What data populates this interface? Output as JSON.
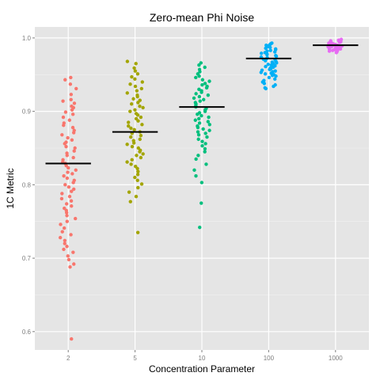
{
  "chart_data": {
    "type": "scatter",
    "title": "Zero-mean Phi Noise",
    "xlabel": "Concentration Parameter",
    "ylabel": "1C Metric",
    "categories": [
      "2",
      "5",
      "10",
      "100",
      "1000"
    ],
    "ylim": [
      0.575,
      1.015
    ],
    "yticks": [
      0.6,
      0.7,
      0.8,
      0.9,
      1.0
    ],
    "ytick_labels": [
      "0.6",
      "0.7",
      "0.8",
      "0.9",
      "1.0"
    ],
    "grid": true,
    "colors": [
      "#F8766D",
      "#A3A500",
      "#00BF7D",
      "#00B0F6",
      "#E76BF3"
    ],
    "mean_line_color": "#000000",
    "panel_background": "#E5E5E5",
    "series": [
      {
        "category": "2",
        "mean": 0.829,
        "values": [
          0.946,
          0.943,
          0.937,
          0.931,
          0.923,
          0.916,
          0.914,
          0.911,
          0.907,
          0.905,
          0.902,
          0.899,
          0.896,
          0.892,
          0.888,
          0.884,
          0.881,
          0.878,
          0.874,
          0.871,
          0.868,
          0.864,
          0.861,
          0.858,
          0.856,
          0.852,
          0.85,
          0.846,
          0.843,
          0.84,
          0.837,
          0.834,
          0.831,
          0.829,
          0.826,
          0.823,
          0.82,
          0.817,
          0.815,
          0.812,
          0.809,
          0.806,
          0.803,
          0.8,
          0.797,
          0.794,
          0.791,
          0.788,
          0.784,
          0.781,
          0.778,
          0.774,
          0.771,
          0.768,
          0.765,
          0.762,
          0.758,
          0.754,
          0.75,
          0.746,
          0.741,
          0.736,
          0.732,
          0.728,
          0.724,
          0.72,
          0.716,
          0.712,
          0.708,
          0.703,
          0.698,
          0.692,
          0.688,
          0.59
        ]
      },
      {
        "category": "5",
        "mean": 0.872,
        "values": [
          0.968,
          0.965,
          0.959,
          0.955,
          0.951,
          0.947,
          0.944,
          0.94,
          0.937,
          0.934,
          0.931,
          0.928,
          0.925,
          0.922,
          0.92,
          0.917,
          0.915,
          0.912,
          0.91,
          0.907,
          0.905,
          0.902,
          0.9,
          0.897,
          0.895,
          0.892,
          0.89,
          0.887,
          0.885,
          0.882,
          0.88,
          0.877,
          0.875,
          0.872,
          0.87,
          0.867,
          0.865,
          0.862,
          0.86,
          0.857,
          0.855,
          0.852,
          0.85,
          0.847,
          0.845,
          0.842,
          0.84,
          0.837,
          0.834,
          0.831,
          0.828,
          0.825,
          0.822,
          0.818,
          0.814,
          0.81,
          0.806,
          0.801,
          0.796,
          0.79,
          0.784,
          0.777,
          0.735
        ]
      },
      {
        "category": "10",
        "mean": 0.906,
        "values": [
          0.966,
          0.963,
          0.96,
          0.957,
          0.954,
          0.951,
          0.948,
          0.946,
          0.943,
          0.941,
          0.938,
          0.936,
          0.934,
          0.932,
          0.93,
          0.928,
          0.926,
          0.924,
          0.922,
          0.92,
          0.918,
          0.916,
          0.914,
          0.912,
          0.91,
          0.908,
          0.906,
          0.904,
          0.902,
          0.9,
          0.898,
          0.896,
          0.894,
          0.892,
          0.89,
          0.888,
          0.886,
          0.884,
          0.882,
          0.88,
          0.878,
          0.876,
          0.874,
          0.872,
          0.87,
          0.868,
          0.865,
          0.862,
          0.859,
          0.856,
          0.853,
          0.849,
          0.845,
          0.84,
          0.835,
          0.828,
          0.82,
          0.812,
          0.803,
          0.775,
          0.742
        ]
      },
      {
        "category": "100",
        "mean": 0.972,
        "values": [
          0.993,
          0.992,
          0.991,
          0.99,
          0.989,
          0.988,
          0.987,
          0.986,
          0.985,
          0.984,
          0.983,
          0.982,
          0.981,
          0.98,
          0.979,
          0.978,
          0.977,
          0.976,
          0.975,
          0.974,
          0.973,
          0.972,
          0.971,
          0.97,
          0.969,
          0.968,
          0.967,
          0.966,
          0.965,
          0.964,
          0.963,
          0.962,
          0.961,
          0.96,
          0.959,
          0.958,
          0.957,
          0.956,
          0.955,
          0.954,
          0.953,
          0.952,
          0.951,
          0.95,
          0.949,
          0.948,
          0.946,
          0.944,
          0.942,
          0.94,
          0.938,
          0.936,
          0.934,
          0.932,
          0.931
        ]
      },
      {
        "category": "1000",
        "mean": 0.99,
        "values": [
          0.998,
          0.997,
          0.997,
          0.996,
          0.996,
          0.995,
          0.995,
          0.994,
          0.994,
          0.993,
          0.993,
          0.992,
          0.992,
          0.991,
          0.991,
          0.99,
          0.99,
          0.99,
          0.989,
          0.989,
          0.988,
          0.988,
          0.987,
          0.987,
          0.986,
          0.986,
          0.985,
          0.985,
          0.984,
          0.984,
          0.983,
          0.983,
          0.982,
          0.981,
          0.98
        ]
      }
    ]
  }
}
